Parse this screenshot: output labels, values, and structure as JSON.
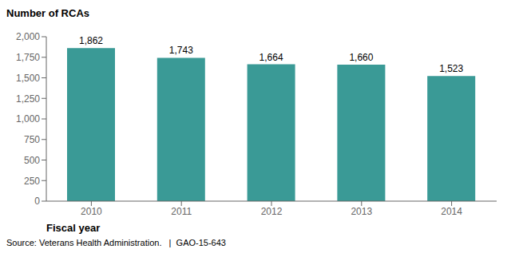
{
  "chart_data": {
    "type": "bar",
    "categories": [
      "2010",
      "2011",
      "2012",
      "2013",
      "2014"
    ],
    "values": [
      1862,
      1743,
      1664,
      1660,
      1523
    ],
    "value_labels": [
      "1,862",
      "1,743",
      "1,664",
      "1,660",
      "1,523"
    ],
    "data_labels": true,
    "color": "#3a9a96",
    "ylabel": "Number of RCAs",
    "xlabel": "Fiscal year",
    "ylim": [
      0,
      2000
    ],
    "yticks": [
      0,
      250,
      500,
      750,
      {
        "value": 1000,
        "label": "1,000"
      },
      {
        "value": 1250,
        "label": "1,250"
      },
      {
        "value": 1500,
        "label": "1,500"
      },
      {
        "value": 1750,
        "label": "1,750"
      },
      {
        "value": 2000,
        "label": "2,000"
      }
    ],
    "grid": false,
    "annotations": [
      "Source: Veterans Health Administration.   |  GAO-15-643"
    ]
  }
}
